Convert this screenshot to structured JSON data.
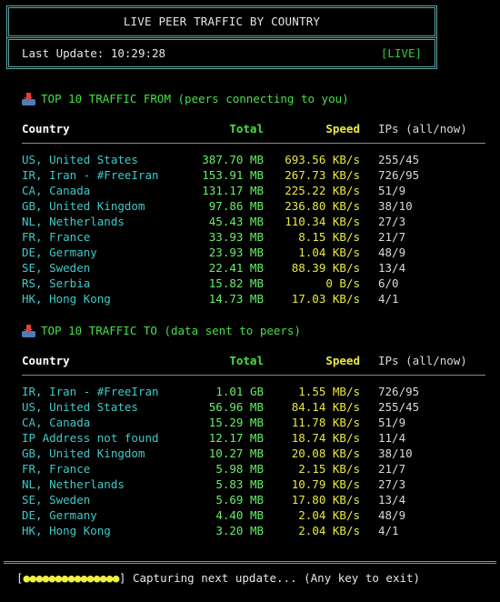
{
  "header": {
    "title": "LIVE PEER TRAFFIC BY COUNTRY",
    "last_update_label": "Last Update:",
    "last_update_time": "10:29:28",
    "live_badge": "[LIVE]"
  },
  "colors": {
    "frame": "#5fa3a3",
    "country": "#40c8c8",
    "total": "#66f066",
    "speed": "#e8e840",
    "section_title": "#44e044"
  },
  "traffic_from": {
    "title": "TOP 10 TRAFFIC FROM (peers connecting to you)",
    "icon": "outbox-tray-icon",
    "headers": {
      "country": "Country",
      "total": "Total",
      "speed": "Speed",
      "ips": "IPs (all/now)"
    },
    "rows": [
      {
        "country": "US, United States",
        "total": "387.70 MB",
        "speed": "693.56 KB/s",
        "ips": "255/45"
      },
      {
        "country": "IR, Iran - #FreeIran",
        "total": "153.91 MB",
        "speed": "267.73 KB/s",
        "ips": "726/95"
      },
      {
        "country": "CA, Canada",
        "total": "131.17 MB",
        "speed": "225.22 KB/s",
        "ips": "51/9"
      },
      {
        "country": "GB, United Kingdom",
        "total": "97.86 MB",
        "speed": "236.80 KB/s",
        "ips": "38/10"
      },
      {
        "country": "NL, Netherlands",
        "total": "45.43 MB",
        "speed": "110.34 KB/s",
        "ips": "27/3"
      },
      {
        "country": "FR, France",
        "total": "33.93 MB",
        "speed": "8.15 KB/s",
        "ips": "21/7"
      },
      {
        "country": "DE, Germany",
        "total": "23.93 MB",
        "speed": "1.04 KB/s",
        "ips": "48/9"
      },
      {
        "country": "SE, Sweden",
        "total": "22.41 MB",
        "speed": "88.39 KB/s",
        "ips": "13/4"
      },
      {
        "country": "RS, Serbia",
        "total": "15.82 MB",
        "speed": "0 B/s",
        "ips": "6/0"
      },
      {
        "country": "HK, Hong Kong",
        "total": "14.73 MB",
        "speed": "17.03 KB/s",
        "ips": "4/1"
      }
    ]
  },
  "traffic_to": {
    "title": "TOP 10 TRAFFIC TO (data sent to peers)",
    "icon": "outbox-tray-icon",
    "headers": {
      "country": "Country",
      "total": "Total",
      "speed": "Speed",
      "ips": "IPs (all/now)"
    },
    "rows": [
      {
        "country": "IR, Iran - #FreeIran",
        "total": "1.01 GB",
        "speed": "1.55 MB/s",
        "ips": "726/95"
      },
      {
        "country": "US, United States",
        "total": "56.96 MB",
        "speed": "84.14 KB/s",
        "ips": "255/45"
      },
      {
        "country": "CA, Canada",
        "total": "15.29 MB",
        "speed": "11.78 KB/s",
        "ips": "51/9"
      },
      {
        "country": "IP Address not found",
        "total": "12.17 MB",
        "speed": "18.74 KB/s",
        "ips": "11/4"
      },
      {
        "country": "GB, United Kingdom",
        "total": "10.27 MB",
        "speed": "20.08 KB/s",
        "ips": "38/10"
      },
      {
        "country": "FR, France",
        "total": "5.98 MB",
        "speed": "2.15 KB/s",
        "ips": "21/7"
      },
      {
        "country": "NL, Netherlands",
        "total": "5.83 MB",
        "speed": "10.79 KB/s",
        "ips": "27/3"
      },
      {
        "country": "SE, Sweden",
        "total": "5.69 MB",
        "speed": "17.80 KB/s",
        "ips": "13/4"
      },
      {
        "country": "DE, Germany",
        "total": "4.40 MB",
        "speed": "2.04 KB/s",
        "ips": "48/9"
      },
      {
        "country": "HK, Hong Kong",
        "total": "3.20 MB",
        "speed": "2.04 KB/s",
        "ips": "4/1"
      }
    ]
  },
  "footer": {
    "progress_open": "[",
    "progress_dots": "●●●●●●●●●●●●●●●",
    "progress_close": "]",
    "status_text": " Capturing next update... (Any key to exit)"
  }
}
